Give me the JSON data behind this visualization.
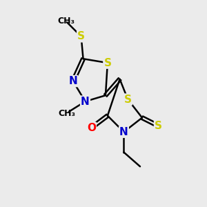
{
  "background_color": "#ebebeb",
  "atom_colors": {
    "S": "#cccc00",
    "N": "#0000cc",
    "O": "#ff0000",
    "C": "#000000"
  },
  "bond_color": "#000000",
  "bond_width": 1.8,
  "font_size_atoms": 11,
  "font_size_methyl": 9
}
